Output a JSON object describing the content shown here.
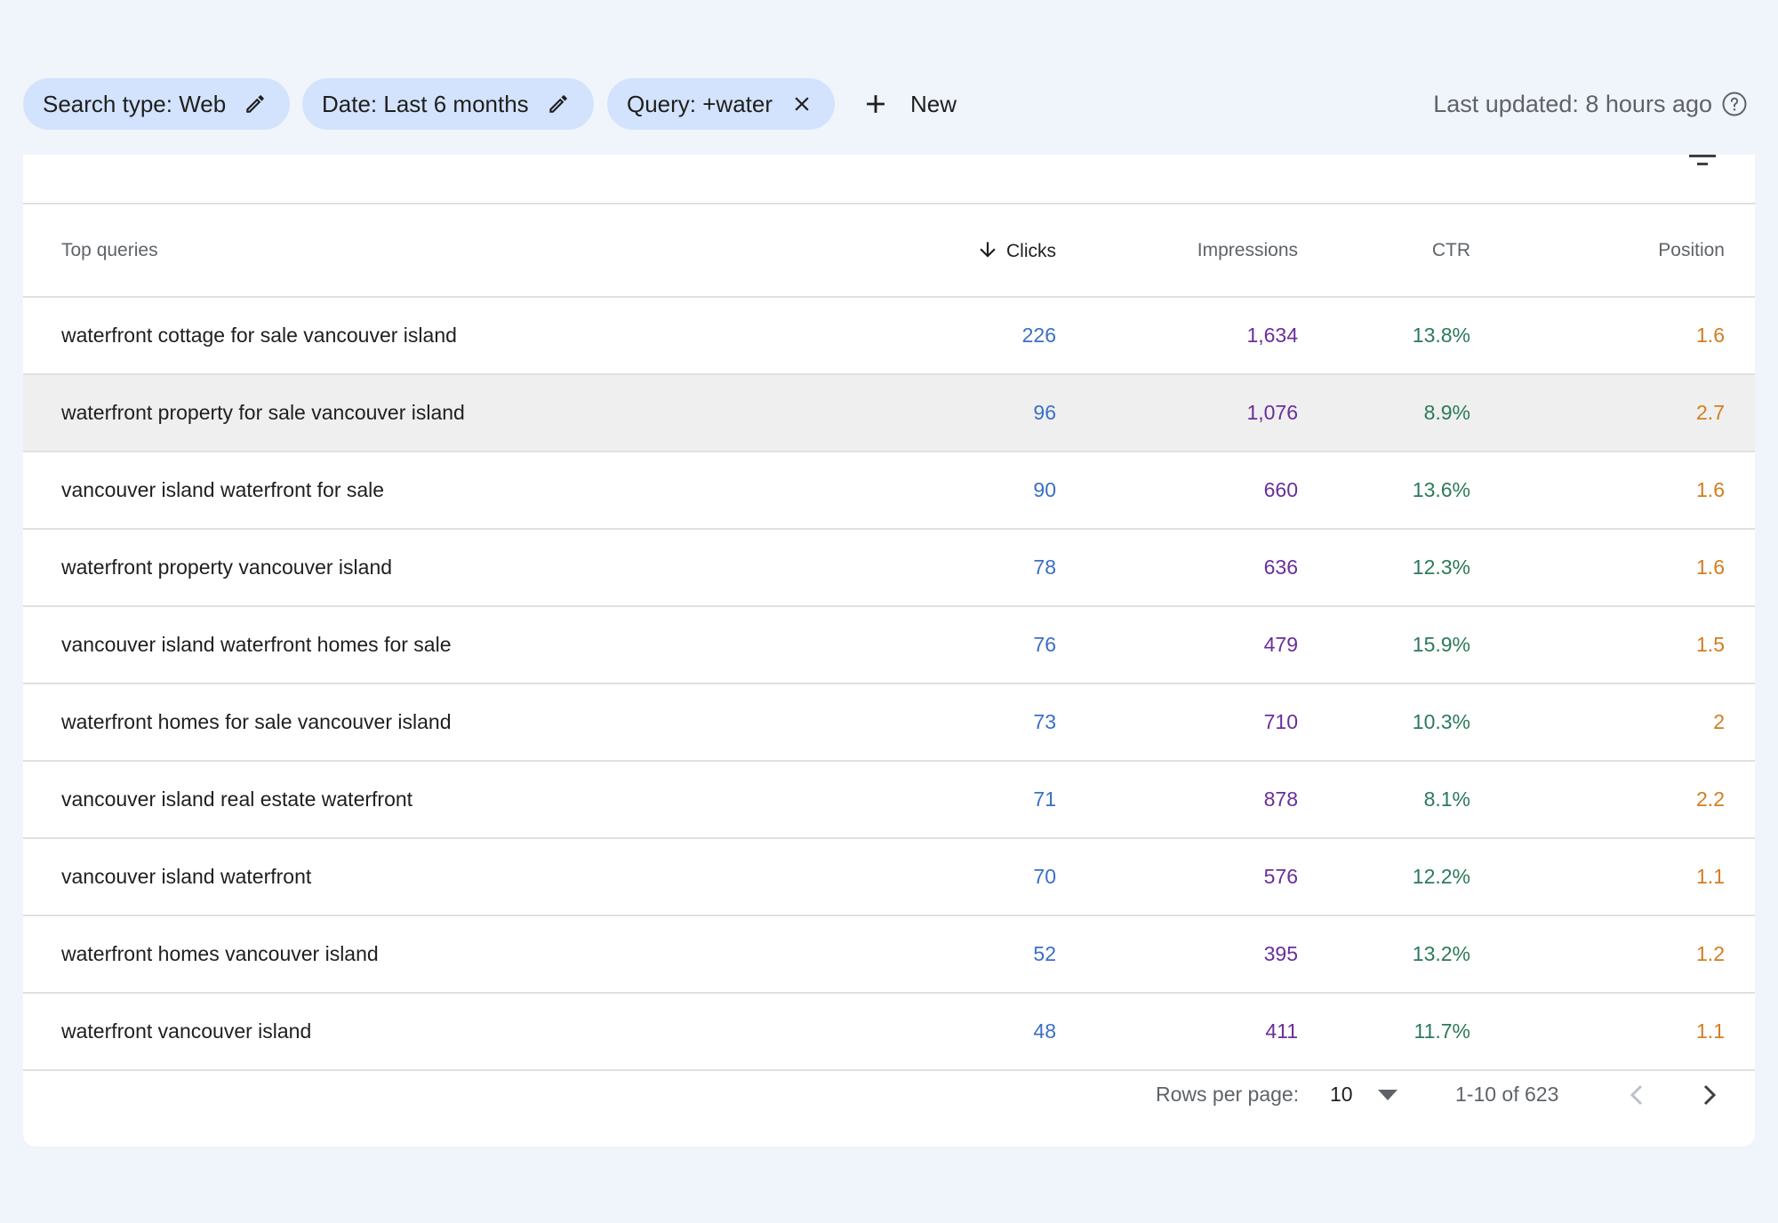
{
  "filters": {
    "search_type": "Search type: Web",
    "date": "Date: Last 6 months",
    "query": "Query: +water",
    "new_label": "New"
  },
  "last_updated": "Last updated: 8 hours ago",
  "table": {
    "columns": {
      "query": "Top queries",
      "clicks": "Clicks",
      "impressions": "Impressions",
      "ctr": "CTR",
      "position": "Position"
    },
    "sort_column": "clicks",
    "rows": [
      {
        "query": "waterfront cottage for sale vancouver island",
        "clicks": "226",
        "impressions": "1,634",
        "ctr": "13.8%",
        "position": "1.6"
      },
      {
        "query": "waterfront property for sale vancouver island",
        "clicks": "96",
        "impressions": "1,076",
        "ctr": "8.9%",
        "position": "2.7"
      },
      {
        "query": "vancouver island waterfront for sale",
        "clicks": "90",
        "impressions": "660",
        "ctr": "13.6%",
        "position": "1.6"
      },
      {
        "query": "waterfront property vancouver island",
        "clicks": "78",
        "impressions": "636",
        "ctr": "12.3%",
        "position": "1.6"
      },
      {
        "query": "vancouver island waterfront homes for sale",
        "clicks": "76",
        "impressions": "479",
        "ctr": "15.9%",
        "position": "1.5"
      },
      {
        "query": "waterfront homes for sale vancouver island",
        "clicks": "73",
        "impressions": "710",
        "ctr": "10.3%",
        "position": "2"
      },
      {
        "query": "vancouver island real estate waterfront",
        "clicks": "71",
        "impressions": "878",
        "ctr": "8.1%",
        "position": "2.2"
      },
      {
        "query": "vancouver island waterfront",
        "clicks": "70",
        "impressions": "576",
        "ctr": "12.2%",
        "position": "1.1"
      },
      {
        "query": "waterfront homes vancouver island",
        "clicks": "52",
        "impressions": "395",
        "ctr": "13.2%",
        "position": "1.2"
      },
      {
        "query": "waterfront vancouver island",
        "clicks": "48",
        "impressions": "411",
        "ctr": "11.7%",
        "position": "1.1"
      }
    ]
  },
  "pagination": {
    "rows_per_page_label": "Rows per page:",
    "rows_per_page_value": "10",
    "range": "1-10 of 623"
  },
  "colors": {
    "chip_bg": "#d3e3fd",
    "clicks": "#3a6fc7",
    "impressions": "#6a2e9c",
    "ctr": "#2c7a5a",
    "position": "#d37d20"
  }
}
